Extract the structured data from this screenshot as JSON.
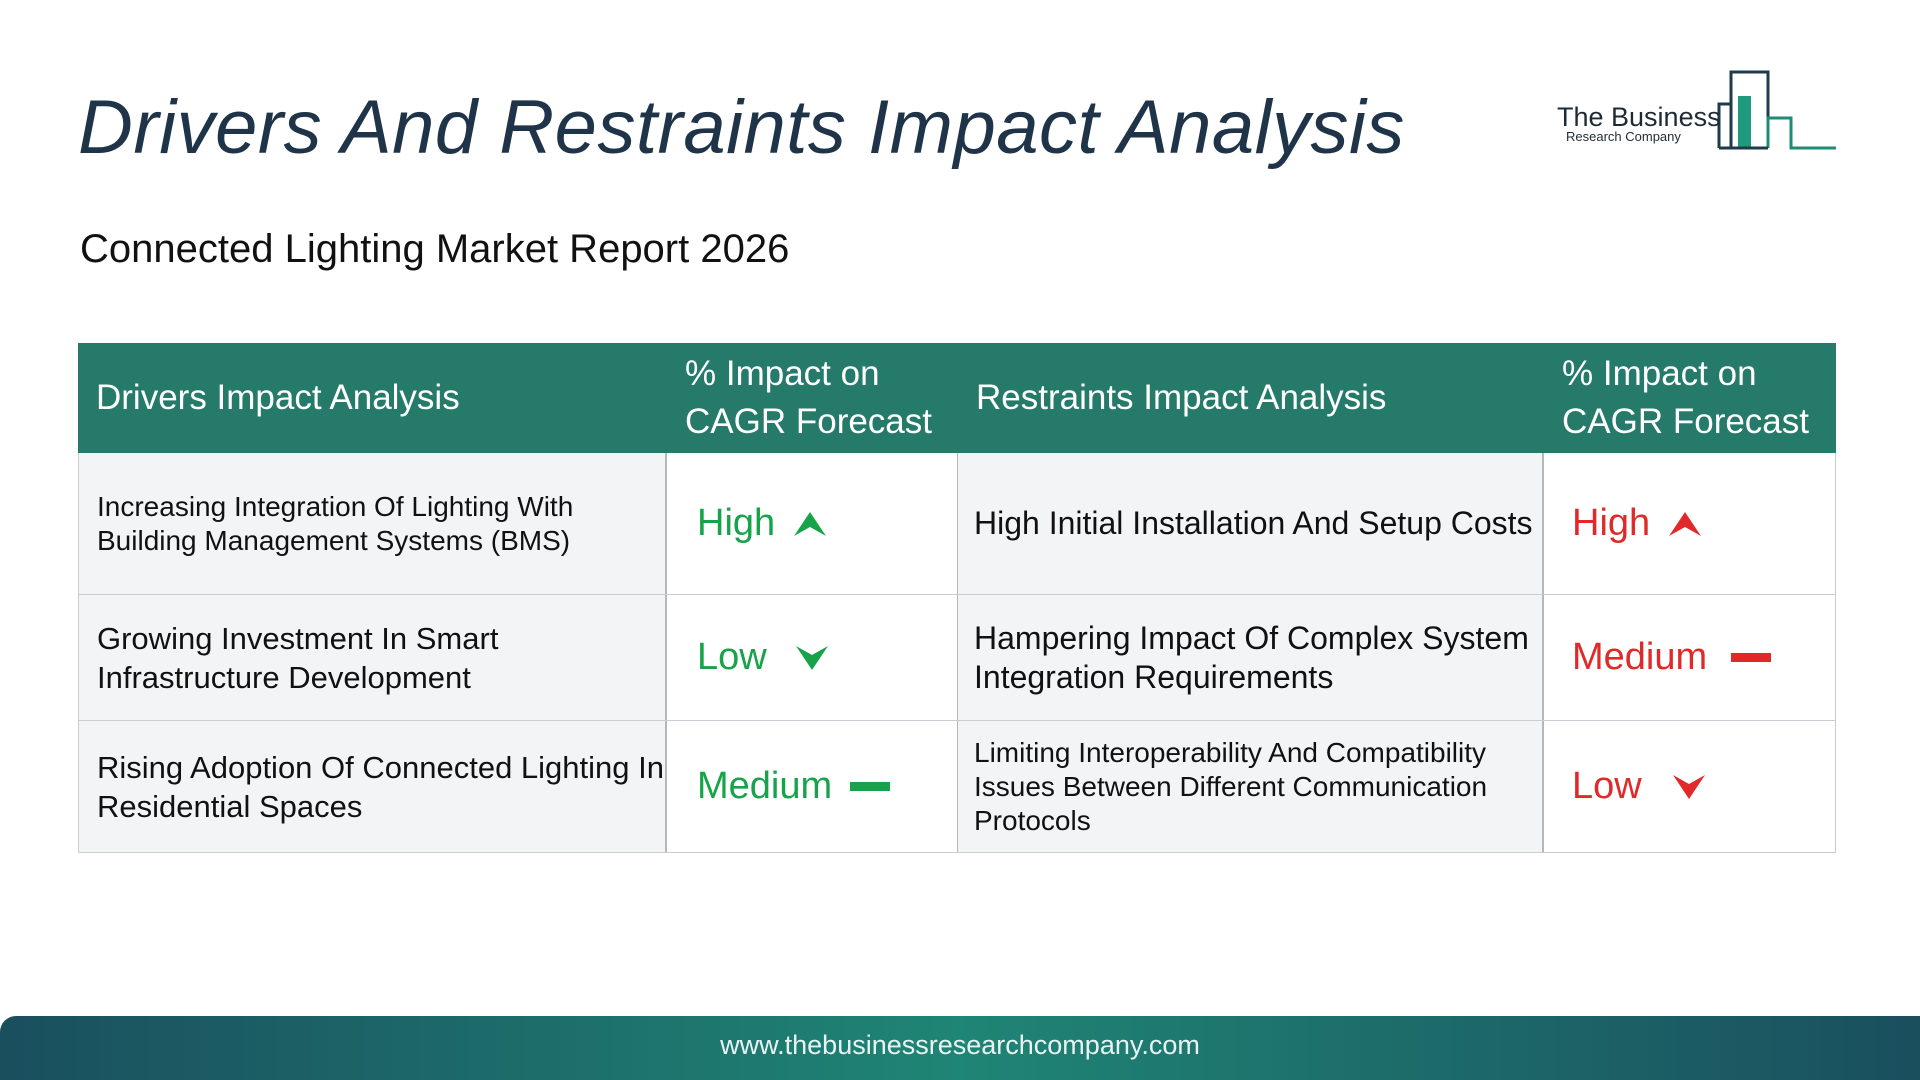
{
  "title": "Drivers And Restraints Impact Analysis",
  "subtitle": "Connected Lighting Market Report 2026",
  "logo": {
    "line1": "The Business",
    "line2": "Research Company"
  },
  "table": {
    "headers": {
      "drivers": "Drivers Impact Analysis",
      "drivers_impact": "% Impact on CAGR Forecast",
      "restraints": "Restraints Impact Analysis",
      "restraints_impact": "% Impact on CAGR Forecast"
    },
    "rows": [
      {
        "driver": "Increasing Integration Of Lighting With Building Management Systems (BMS)",
        "driver_impact": "High",
        "restraint": "High Initial Installation And Setup Costs",
        "restraint_impact": "High"
      },
      {
        "driver": "Growing Investment In Smart Infrastructure Development",
        "driver_impact": "Low",
        "restraint": "Hampering Impact Of Complex System Integration Requirements",
        "restraint_impact": "Medium"
      },
      {
        "driver": "Rising Adoption Of Connected Lighting In Residential Spaces",
        "driver_impact": "Medium",
        "restraint": "Limiting Interoperability And Compatibility Issues Between Different Communication Protocols",
        "restraint_impact": "Low"
      }
    ]
  },
  "colors": {
    "header_bg": "#257a6a",
    "driver_impact": "#16a34a",
    "restraint_impact": "#e02a2a"
  },
  "footer": {
    "url": "www.thebusinessresearchcompany.com"
  }
}
